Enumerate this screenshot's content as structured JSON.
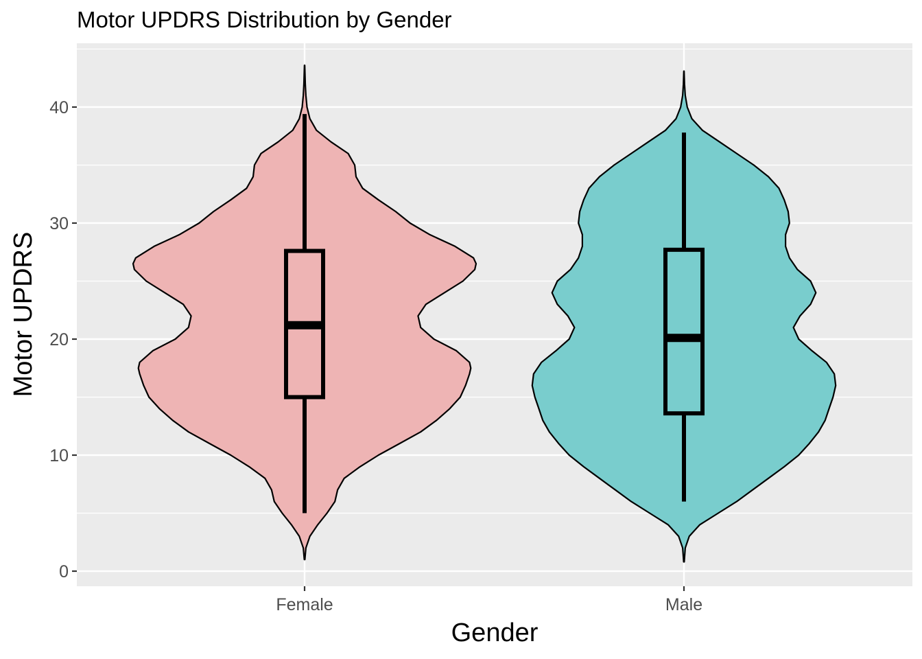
{
  "chart_data": {
    "type": "violin",
    "title": "Motor UPDRS Distribution by Gender",
    "xlabel": "Gender",
    "ylabel": "Motor UPDRS",
    "categories": [
      "Female",
      "Male"
    ],
    "ylim": [
      -1.3,
      45.5
    ],
    "y_ticks": [
      0,
      10,
      20,
      30,
      40
    ],
    "y_tick_labels": [
      "0",
      "10",
      "20",
      "30",
      "40"
    ],
    "grid": true,
    "legend": "none",
    "colors": {
      "panel": "#ebebeb",
      "grid": "#ffffff",
      "Female": "#eeb4b4",
      "Male": "#79cdcd",
      "outline": "#000000"
    },
    "series": [
      {
        "category": "Female",
        "min": 5.0,
        "q1": 15.0,
        "median": 21.2,
        "q3": 27.6,
        "max": 39.4,
        "range": [
          1.0,
          43.6
        ],
        "density_profile": [
          [
            1.0,
            0.002
          ],
          [
            2.0,
            0.01
          ],
          [
            3.0,
            0.04
          ],
          [
            4.0,
            0.1
          ],
          [
            5.0,
            0.17
          ],
          [
            6.0,
            0.23
          ],
          [
            7.0,
            0.25
          ],
          [
            8.0,
            0.3
          ],
          [
            9.0,
            0.42
          ],
          [
            10.0,
            0.56
          ],
          [
            11.0,
            0.72
          ],
          [
            12.0,
            0.88
          ],
          [
            13.0,
            1.0
          ],
          [
            14.0,
            1.1
          ],
          [
            15.0,
            1.18
          ],
          [
            16.0,
            1.22
          ],
          [
            17.0,
            1.25
          ],
          [
            17.5,
            1.26
          ],
          [
            18.0,
            1.25
          ],
          [
            19.0,
            1.15
          ],
          [
            20.0,
            0.98
          ],
          [
            21.0,
            0.88
          ],
          [
            22.0,
            0.86
          ],
          [
            23.0,
            0.92
          ],
          [
            24.0,
            1.06
          ],
          [
            25.0,
            1.2
          ],
          [
            26.0,
            1.29
          ],
          [
            26.5,
            1.3
          ],
          [
            27.0,
            1.28
          ],
          [
            28.0,
            1.14
          ],
          [
            29.0,
            0.95
          ],
          [
            30.0,
            0.8
          ],
          [
            31.0,
            0.69
          ],
          [
            32.0,
            0.56
          ],
          [
            33.0,
            0.44
          ],
          [
            34.0,
            0.39
          ],
          [
            35.0,
            0.38
          ],
          [
            36.0,
            0.33
          ],
          [
            37.0,
            0.2
          ],
          [
            38.0,
            0.09
          ],
          [
            39.0,
            0.04
          ],
          [
            40.0,
            0.018
          ],
          [
            41.0,
            0.01
          ],
          [
            42.0,
            0.005
          ],
          [
            43.6,
            0.001
          ]
        ]
      },
      {
        "category": "Male",
        "min": 6.0,
        "q1": 13.6,
        "median": 20.1,
        "q3": 27.7,
        "max": 37.8,
        "range": [
          0.8,
          43.1
        ],
        "density_profile": [
          [
            0.8,
            0.002
          ],
          [
            2.0,
            0.01
          ],
          [
            3.0,
            0.04
          ],
          [
            4.0,
            0.12
          ],
          [
            5.0,
            0.26
          ],
          [
            6.0,
            0.4
          ],
          [
            7.0,
            0.52
          ],
          [
            8.0,
            0.64
          ],
          [
            9.0,
            0.76
          ],
          [
            10.0,
            0.87
          ],
          [
            11.0,
            0.95
          ],
          [
            12.0,
            1.02
          ],
          [
            13.0,
            1.07
          ],
          [
            14.0,
            1.1
          ],
          [
            15.0,
            1.13
          ],
          [
            16.0,
            1.15
          ],
          [
            17.0,
            1.14
          ],
          [
            18.0,
            1.08
          ],
          [
            19.0,
            0.97
          ],
          [
            20.0,
            0.87
          ],
          [
            21.0,
            0.83
          ],
          [
            22.0,
            0.88
          ],
          [
            23.0,
            0.96
          ],
          [
            24.0,
            1.0
          ],
          [
            25.0,
            0.96
          ],
          [
            26.0,
            0.86
          ],
          [
            27.0,
            0.8
          ],
          [
            28.0,
            0.77
          ],
          [
            29.0,
            0.77
          ],
          [
            30.0,
            0.8
          ],
          [
            31.0,
            0.79
          ],
          [
            32.0,
            0.76
          ],
          [
            33.0,
            0.72
          ],
          [
            34.0,
            0.64
          ],
          [
            35.0,
            0.53
          ],
          [
            36.0,
            0.4
          ],
          [
            37.0,
            0.27
          ],
          [
            38.0,
            0.14
          ],
          [
            39.0,
            0.06
          ],
          [
            40.0,
            0.025
          ],
          [
            41.0,
            0.01
          ],
          [
            42.0,
            0.004
          ],
          [
            43.1,
            0.001
          ]
        ]
      }
    ]
  }
}
